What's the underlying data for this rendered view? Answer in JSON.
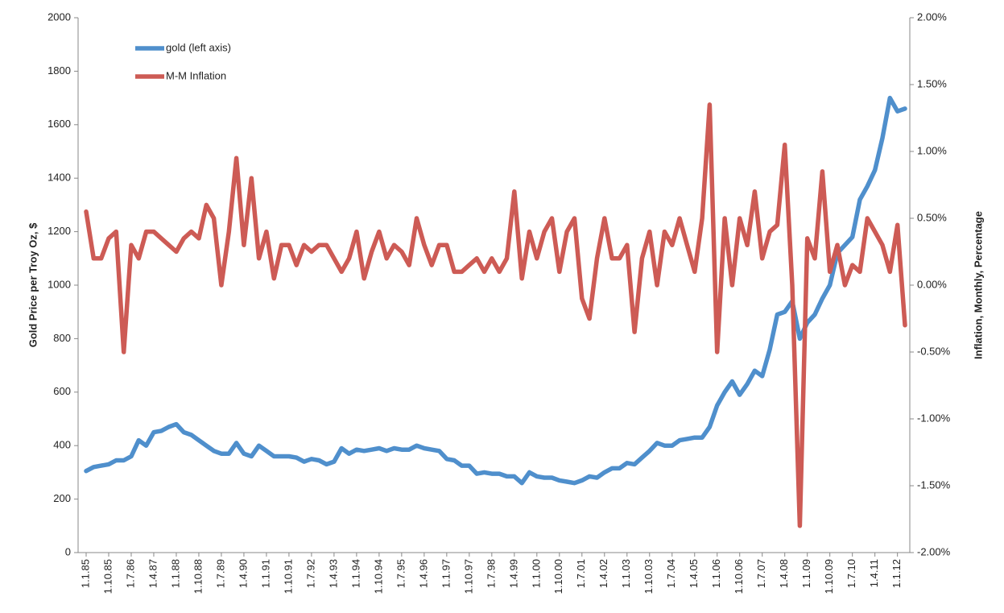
{
  "chart_data": {
    "type": "line",
    "y_label": "Gold Price per Troy Oz, $",
    "y2_label": "Inflation, Monthly, Percentage",
    "categories": [
      "1.1.85",
      null,
      null,
      "1.10.85",
      null,
      null,
      "1.7.86",
      null,
      null,
      "1.4.87",
      null,
      null,
      "1.1.88",
      null,
      null,
      "1.10.88",
      null,
      null,
      "1.7.89",
      null,
      null,
      "1.4.90",
      null,
      null,
      "1.1.91",
      null,
      null,
      "1.10.91",
      null,
      null,
      "1.7.92",
      null,
      null,
      "1.4.93",
      null,
      null,
      "1.1.94",
      null,
      null,
      "1.10.94",
      null,
      null,
      "1.7.95",
      null,
      null,
      "1.4.96",
      null,
      null,
      "1.1.97",
      null,
      null,
      "1.10.97",
      null,
      null,
      "1.7.98",
      null,
      null,
      "1.4.99",
      null,
      null,
      "1.1.00",
      null,
      null,
      "1.10.00",
      null,
      null,
      "1.7.01",
      null,
      null,
      "1.4.02",
      null,
      null,
      "1.1.03",
      null,
      null,
      "1.10.03",
      null,
      null,
      "1.7.04",
      null,
      null,
      "1.4.05",
      null,
      null,
      "1.1.06",
      null,
      null,
      "1.10.06",
      null,
      null,
      "1.7.07",
      null,
      null,
      "1.4.08",
      null,
      null,
      "1.1.09",
      null,
      null,
      "1.10.09",
      null,
      null,
      "1.7.10",
      null,
      null,
      "1.4.11",
      null,
      null,
      "1.1.12",
      null
    ],
    "series": [
      {
        "name": "gold (left axis)",
        "color": "#4f8fcc",
        "values": [
          305,
          320,
          325,
          330,
          345,
          345,
          360,
          420,
          400,
          450,
          455,
          470,
          480,
          450,
          440,
          420,
          400,
          380,
          370,
          370,
          410,
          370,
          360,
          400,
          380,
          360,
          360,
          360,
          355,
          340,
          350,
          345,
          330,
          340,
          390,
          370,
          385,
          380,
          385,
          390,
          380,
          390,
          385,
          385,
          400,
          390,
          385,
          380,
          350,
          345,
          325,
          325,
          295,
          300,
          295,
          295,
          285,
          285,
          260,
          300,
          285,
          280,
          280,
          270,
          265,
          260,
          270,
          285,
          280,
          300,
          315,
          315,
          335,
          330,
          355,
          380,
          410,
          400,
          400,
          420,
          425,
          430,
          430,
          470,
          550,
          600,
          640,
          590,
          630,
          680,
          660,
          760,
          890,
          900,
          940,
          800,
          860,
          890,
          950,
          1000,
          1120,
          1150,
          1180,
          1320,
          1370,
          1430,
          1550,
          1700,
          1650,
          1660
        ]
      },
      {
        "name": "M-M Inflation",
        "color": "#cd5b55",
        "axis": "y2",
        "values": [
          0.55,
          0.2,
          0.2,
          0.35,
          0.4,
          -0.5,
          0.3,
          0.2,
          0.4,
          0.4,
          0.35,
          0.3,
          0.25,
          0.35,
          0.4,
          0.35,
          0.6,
          0.5,
          0.0,
          0.4,
          0.95,
          0.3,
          0.8,
          0.2,
          0.4,
          0.05,
          0.3,
          0.3,
          0.15,
          0.3,
          0.25,
          0.3,
          0.3,
          0.2,
          0.1,
          0.2,
          0.4,
          0.05,
          0.25,
          0.4,
          0.2,
          0.3,
          0.25,
          0.15,
          0.5,
          0.3,
          0.15,
          0.3,
          0.3,
          0.1,
          0.1,
          0.15,
          0.2,
          0.1,
          0.2,
          0.1,
          0.2,
          0.7,
          0.05,
          0.4,
          0.2,
          0.4,
          0.5,
          0.1,
          0.4,
          0.5,
          -0.1,
          -0.25,
          0.2,
          0.5,
          0.2,
          0.2,
          0.3,
          -0.35,
          0.2,
          0.4,
          0.0,
          0.4,
          0.3,
          0.5,
          0.3,
          0.1,
          0.5,
          1.35,
          -0.5,
          0.5,
          0.0,
          0.5,
          0.3,
          0.7,
          0.2,
          0.4,
          0.45,
          1.05,
          0.0,
          -1.8,
          0.35,
          0.2,
          0.85,
          0.1,
          0.3,
          0.0,
          0.15,
          0.1,
          0.5,
          0.4,
          0.3,
          0.1,
          0.45,
          -0.3
        ]
      }
    ],
    "ylim": [
      0,
      2000
    ],
    "yticks": [
      0,
      200,
      400,
      600,
      800,
      1000,
      1200,
      1400,
      1600,
      1800,
      2000
    ],
    "y2lim": [
      -2,
      2
    ],
    "y2ticks": [
      {
        "value": -2,
        "label": "-2.00%"
      },
      {
        "value": -1.5,
        "label": "-1.50%"
      },
      {
        "value": -1,
        "label": "-1.00%"
      },
      {
        "value": -0.5,
        "label": "-0.50%"
      },
      {
        "value": 0,
        "label": "0.00%"
      },
      {
        "value": 0.5,
        "label": "0.50%"
      },
      {
        "value": 1,
        "label": "1.00%"
      },
      {
        "value": 1.5,
        "label": "1.50%"
      },
      {
        "value": 2,
        "label": "2.00%"
      }
    ],
    "legend": "top-left",
    "grid": false
  }
}
